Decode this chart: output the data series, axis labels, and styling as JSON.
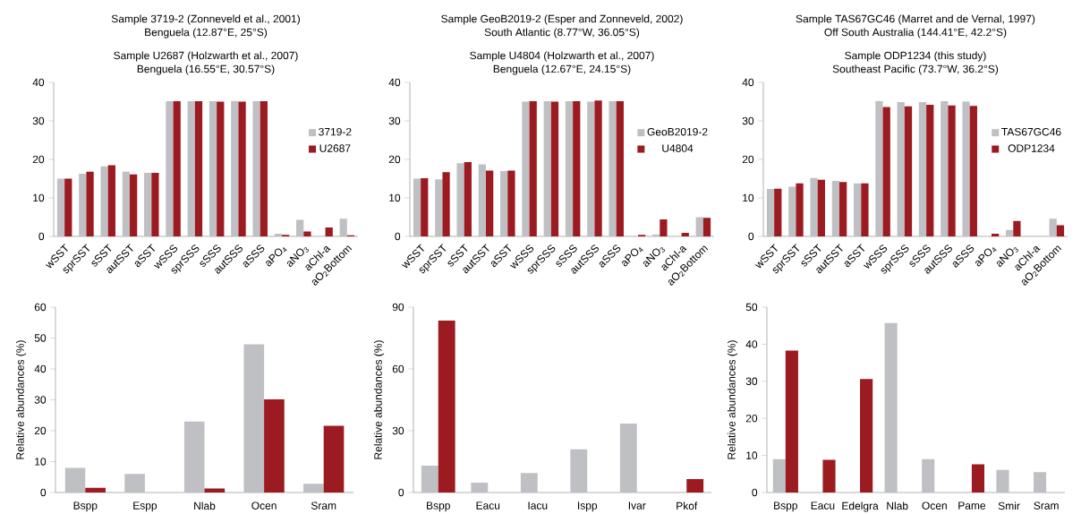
{
  "chart_data": [
    {
      "type": "bar",
      "title": "Sample 3719-2 (Zonneveld et al., 2001)",
      "subtitle": "Benguela (12.87°E, 25°S)",
      "annotations": [
        "Sample U2687 (Holzwarth et al., 2007)",
        "Benguela (16.55°E, 30.57°S)"
      ],
      "categories": [
        "wSST",
        "sprSST",
        "sSST",
        "autSST",
        "aSST",
        "wSSS",
        "sprSSS",
        "sSSS",
        "autSSS",
        "aSSS",
        "aPO$_{4}$",
        "aNO$_{3}$",
        "aChl-a",
        "aO$_{2}$Bottom"
      ],
      "series": [
        {
          "name": "3719-2",
          "color": "#bfc0c4",
          "values": [
            15,
            16.3,
            18.2,
            16.8,
            16.5,
            35.1,
            35.1,
            35.1,
            35.2,
            35.1,
            0.7,
            4.3,
            null,
            4.6
          ]
        },
        {
          "name": "U2687",
          "color": "#9b1b20",
          "values": [
            15,
            16.8,
            18.5,
            16.1,
            16.5,
            35.1,
            35.1,
            35.0,
            35.0,
            35.1,
            0.4,
            1.3,
            2.3,
            0.3
          ]
        }
      ],
      "ylim": [
        0,
        40
      ],
      "yticks": [
        0,
        10,
        20,
        30,
        40
      ],
      "legend": "right"
    },
    {
      "type": "bar",
      "title": "Sample GeoB2019-2 (Esper and Zonneveld, 2002)",
      "subtitle": "South Atlantic (8.77°W, 36.05°S)",
      "annotations": [
        "Sample U4804 (Holzwarth et al., 2007)",
        "Benguela (12.67°E, 24.15°S)"
      ],
      "categories": [
        "wSST",
        "sprSST",
        "sSST",
        "autSST",
        "aSST",
        "wSSS",
        "sprSSS",
        "sSSS",
        "autSSS",
        "aSSS",
        "aPO$_{4}$",
        "aNO$_{3}$",
        "aChl-a",
        "aO$_{2}$Bottom"
      ],
      "series": [
        {
          "name": "GeoB2019-2",
          "color": "#bfc0c4",
          "values": [
            15,
            14.8,
            19,
            18.7,
            17,
            35,
            35.1,
            35.1,
            35,
            35.1,
            null,
            0.5,
            null,
            5
          ]
        },
        {
          "name": "U4804",
          "color": "#9b1b20",
          "values": [
            15.1,
            16.7,
            19.3,
            17.1,
            17.1,
            35.1,
            35,
            35.1,
            35.3,
            35.1,
            0.4,
            4.4,
            0.9,
            4.8
          ]
        }
      ],
      "ylim": [
        0,
        40
      ],
      "yticks": [
        0,
        10,
        20,
        30,
        40
      ],
      "legend": "right"
    },
    {
      "type": "bar",
      "title": "Sample TAS67GC46 (Marret and de Vernal, 1997)",
      "subtitle": "Off South Australia (144.41°E, 42.2°S)",
      "annotations": [
        "Sample ODP1234 (this study)",
        "Southeast Pacific (73.7°W, 36.2°S)"
      ],
      "categories": [
        "wSST",
        "sprSST",
        "sSST",
        "autSST",
        "aSST",
        "wSSS",
        "sprSSS",
        "sSSS",
        "autSSS",
        "aSSS",
        "aPO$_{4}$",
        "aNO$_{3}$",
        "aChl-a",
        "aO$_{2}$Bottom"
      ],
      "series": [
        {
          "name": "TAS67GC46",
          "color": "#bfc0c4",
          "values": [
            12.3,
            12.9,
            15.2,
            14.4,
            13.8,
            35.2,
            34.9,
            34.9,
            35.1,
            35,
            null,
            1.7,
            null,
            4.6
          ]
        },
        {
          "name": "ODP1234",
          "color": "#9b1b20",
          "values": [
            12.4,
            13.8,
            14.7,
            14.1,
            13.8,
            33.6,
            33.8,
            34.2,
            34,
            33.9,
            0.7,
            4,
            null,
            2.9
          ]
        }
      ],
      "ylim": [
        0,
        40
      ],
      "yticks": [
        0,
        10,
        20,
        30,
        40
      ],
      "legend": "right"
    },
    {
      "type": "bar",
      "ylabel": "Relative abundances (%)",
      "categories": [
        "Bspp",
        "Espp",
        "Nlab",
        "Ocen",
        "Sram"
      ],
      "series": [
        {
          "color": "#bfc0c4",
          "values": [
            8,
            6,
            23,
            48,
            2.8
          ]
        },
        {
          "color": "#9b1b20",
          "values": [
            1.5,
            null,
            1.3,
            30.2,
            21.6
          ]
        }
      ],
      "ylim": [
        0,
        60
      ],
      "yticks": [
        0,
        10,
        20,
        30,
        40,
        50,
        60
      ]
    },
    {
      "type": "bar",
      "ylabel": "Relative abundances (%)",
      "categories": [
        "Bspp",
        "Eacu",
        "Iacu",
        "Ispp",
        "Ivar",
        "Pkof"
      ],
      "series": [
        {
          "color": "#bfc0c4",
          "values": [
            13,
            4.8,
            9.5,
            21,
            33.5,
            null
          ]
        },
        {
          "color": "#9b1b20",
          "values": [
            83.5,
            null,
            null,
            null,
            null,
            6.5
          ]
        }
      ],
      "ylim": [
        0,
        90
      ],
      "yticks": [
        0,
        30,
        60,
        90
      ]
    },
    {
      "type": "bar",
      "ylabel": "Relative abundances (%)",
      "categories": [
        "Bspp",
        "Eacu",
        "Edelgra",
        "Nlab",
        "Ocen",
        "Pame",
        "Smir",
        "Sram"
      ],
      "series": [
        {
          "color": "#bfc0c4",
          "values": [
            9,
            null,
            null,
            45.7,
            9,
            null,
            6.1,
            5.5
          ]
        },
        {
          "color": "#9b1b20",
          "values": [
            38.3,
            8.8,
            30.6,
            null,
            null,
            7.6,
            null,
            null
          ]
        }
      ],
      "ylim": [
        0,
        50
      ],
      "yticks": [
        0,
        10,
        20,
        30,
        40,
        50
      ]
    }
  ]
}
